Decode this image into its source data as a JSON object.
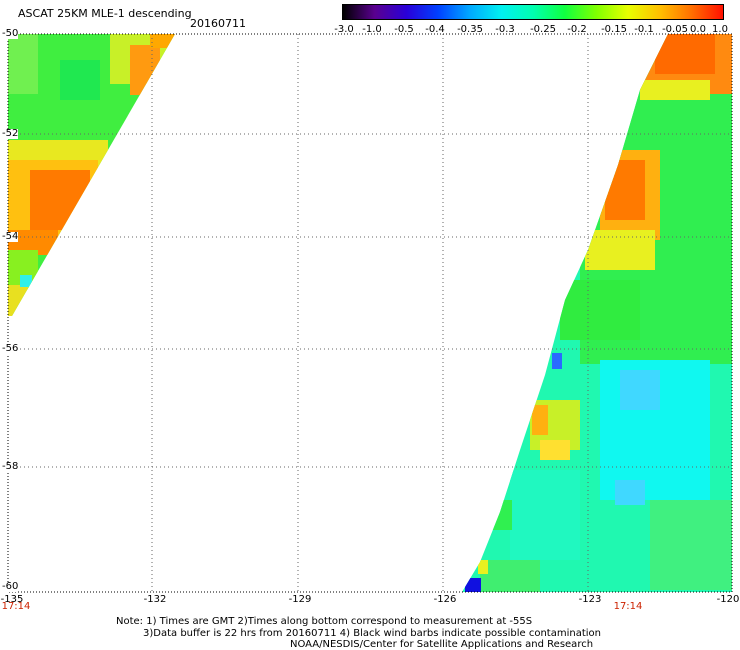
{
  "header": {
    "title": "ASCAT 25KM MLE-1 descending",
    "date": "20160711"
  },
  "colorbar": {
    "labels": [
      "-3.0",
      "-1.0",
      "-0.5",
      "-0.4",
      "-0.35",
      "-0.3",
      "-0.25",
      "-0.2",
      "-0.15",
      "-0.1",
      "-0.05",
      "0.0",
      "1.0"
    ],
    "colors": [
      "#000000",
      "#5a0090",
      "#2a00d8",
      "#0040ff",
      "#00a8ff",
      "#00f0f0",
      "#00ffb0",
      "#10ff40",
      "#80ff00",
      "#e8ff00",
      "#ffc000",
      "#ff7000",
      "#ff1000"
    ]
  },
  "map": {
    "lat_labels": [
      "-50",
      "-52",
      "-54",
      "-56",
      "-58",
      "-60"
    ],
    "lon_labels": [
      "-135",
      "-132",
      "-129",
      "-126",
      "-123",
      "-120"
    ],
    "time_labels": [
      "17:14",
      "17:14"
    ],
    "left_swath_color": "#44ee44",
    "right_swath_color": "#22ffcc"
  },
  "footer": {
    "note_line1": "Note: 1) Times are GMT 2)Times along bottom correspond to measurement at -55S",
    "note_line2": "3)Data buffer is 22 hrs from 20160711 4) Black wind barbs indicate possible contamination",
    "note_line3": "NOAA/NESDIS/Center for Satellite Applications and Research"
  }
}
